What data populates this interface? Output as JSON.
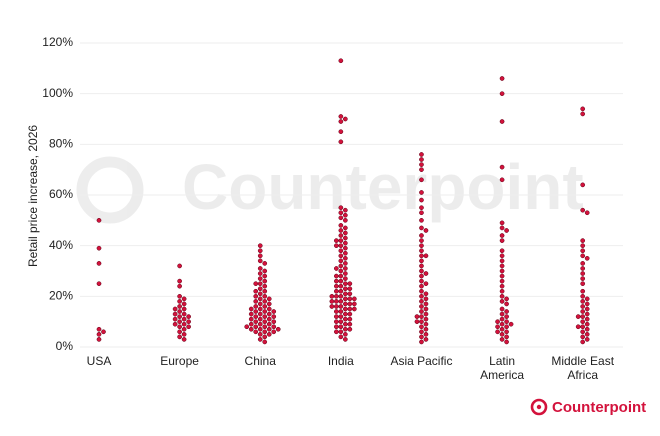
{
  "chart_data": {
    "type": "beeswarm",
    "y_label": "Retail price increase, 2026",
    "watermark": "Counterpoint",
    "logo": "Counterpoint",
    "color": "#d3123c",
    "grid": true,
    "ylim": [
      0,
      120
    ],
    "yticks": [
      {
        "value": 0,
        "label": "0%"
      },
      {
        "value": 20,
        "label": "20%"
      },
      {
        "value": 40,
        "label": "40%"
      },
      {
        "value": 60,
        "label": "60%"
      },
      {
        "value": 80,
        "label": "80%"
      },
      {
        "value": 100,
        "label": "100%"
      },
      {
        "value": 120,
        "label": "120%"
      }
    ],
    "categories": [
      "USA",
      "Europe",
      "China",
      "India",
      "Asia Pacific",
      "Latin America",
      "Middle East Africa"
    ],
    "values": [
      [
        50,
        39,
        33,
        25,
        7,
        6,
        5,
        3
      ],
      [
        32,
        26,
        24,
        20,
        19,
        18,
        17,
        16,
        15,
        15,
        14,
        13,
        13,
        12,
        12,
        11,
        11,
        10,
        10,
        9,
        9,
        8,
        8,
        7,
        6,
        5,
        4,
        3
      ],
      [
        40,
        38,
        36,
        34,
        33,
        31,
        30,
        29,
        28,
        27,
        26,
        25,
        25,
        24,
        23,
        22,
        22,
        21,
        20,
        20,
        19,
        19,
        18,
        18,
        17,
        17,
        16,
        16,
        15,
        15,
        15,
        14,
        14,
        14,
        13,
        13,
        13,
        12,
        12,
        12,
        11,
        11,
        11,
        10,
        10,
        10,
        9,
        9,
        9,
        8,
        8,
        8,
        8,
        7,
        7,
        7,
        7,
        6,
        6,
        6,
        5,
        5,
        4,
        3,
        2
      ],
      [
        113,
        91,
        90,
        89,
        85,
        81,
        55,
        54,
        53,
        52,
        51,
        50,
        48,
        47,
        46,
        45,
        44,
        43,
        42,
        42,
        41,
        40,
        40,
        39,
        38,
        37,
        36,
        35,
        34,
        33,
        32,
        31,
        31,
        30,
        29,
        28,
        28,
        27,
        26,
        26,
        25,
        25,
        24,
        24,
        23,
        23,
        22,
        22,
        21,
        21,
        20,
        20,
        20,
        19,
        19,
        19,
        18,
        18,
        18,
        17,
        17,
        17,
        16,
        16,
        16,
        15,
        15,
        15,
        14,
        14,
        13,
        13,
        12,
        12,
        11,
        11,
        10,
        10,
        9,
        9,
        8,
        8,
        7,
        7,
        6,
        6,
        5,
        4,
        3
      ],
      [
        76,
        74,
        72,
        70,
        66,
        61,
        58,
        55,
        53,
        50,
        47,
        46,
        44,
        42,
        40,
        38,
        36,
        36,
        34,
        32,
        30,
        29,
        28,
        26,
        25,
        24,
        22,
        21,
        20,
        19,
        18,
        17,
        16,
        15,
        14,
        13,
        12,
        12,
        11,
        10,
        10,
        9,
        8,
        7,
        6,
        5,
        4,
        3,
        2
      ],
      [
        106,
        100,
        89,
        71,
        66,
        49,
        47,
        46,
        44,
        42,
        38,
        36,
        34,
        32,
        30,
        28,
        26,
        24,
        22,
        20,
        19,
        18,
        17,
        15,
        14,
        13,
        12,
        11,
        10,
        10,
        9,
        9,
        8,
        8,
        7,
        6,
        6,
        5,
        4,
        3,
        2
      ],
      [
        94,
        92,
        64,
        54,
        53,
        42,
        40,
        38,
        36,
        35,
        33,
        31,
        29,
        27,
        25,
        22,
        20,
        19,
        18,
        17,
        16,
        15,
        14,
        13,
        12,
        12,
        11,
        10,
        9,
        8,
        8,
        7,
        6,
        5,
        4,
        3,
        2
      ]
    ]
  }
}
